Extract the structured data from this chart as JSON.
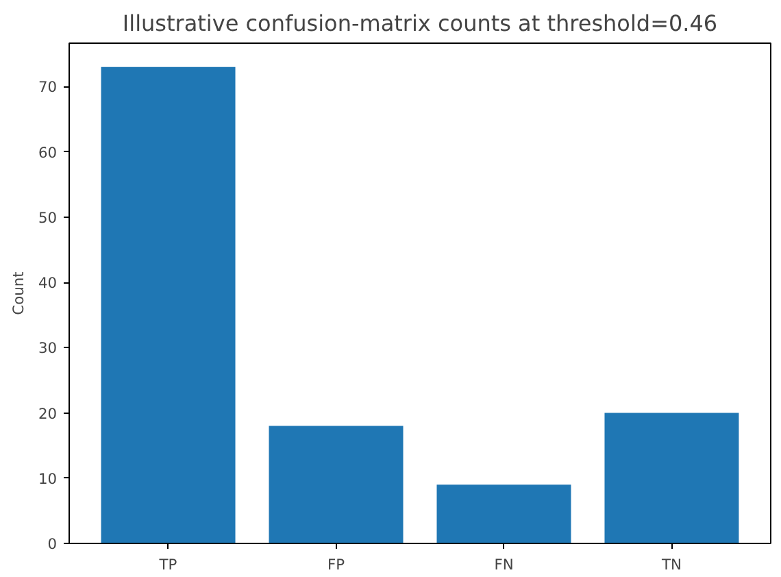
{
  "chart_data": {
    "type": "bar",
    "title": "Illustrative confusion-matrix counts at threshold=0.46",
    "ylabel": "Count",
    "categories": [
      "TP",
      "FP",
      "FN",
      "TN"
    ],
    "values": [
      73,
      18,
      9,
      20
    ],
    "color": "#1f77b4",
    "ylim": [
      0,
      76.65
    ],
    "yticks": [
      0,
      10,
      20,
      30,
      40,
      50,
      60,
      70
    ],
    "grid": false
  }
}
